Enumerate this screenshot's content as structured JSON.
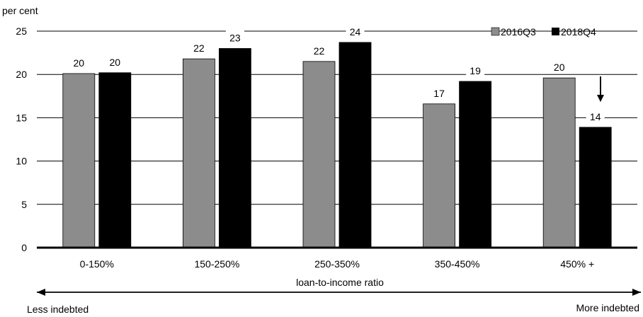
{
  "chart_data": {
    "type": "bar",
    "y_unit_label": "per cent",
    "categories": [
      "0-150%",
      "150-250%",
      "250-350%",
      "350-450%",
      "450% +"
    ],
    "series": [
      {
        "name": "2016Q3",
        "color": "#8c8c8c",
        "values": [
          20.1,
          21.8,
          21.5,
          16.6,
          19.6
        ],
        "labels": [
          "20",
          "22",
          "22",
          "17",
          "20"
        ]
      },
      {
        "name": "2018Q4",
        "color": "#000000",
        "values": [
          20.2,
          23.0,
          23.7,
          19.2,
          13.9
        ],
        "labels": [
          "20",
          "23",
          "24",
          "19",
          "14"
        ]
      }
    ],
    "ylim": [
      0,
      25
    ],
    "y_ticks": [
      0,
      5,
      10,
      15,
      20,
      25
    ],
    "grid": true,
    "legend": "top-right",
    "xlabel": "loan-to-income ratio",
    "arrow_left_label": "Less indebted",
    "arrow_right_label": "More indebted",
    "annotation_arrow_category": "450% +"
  }
}
